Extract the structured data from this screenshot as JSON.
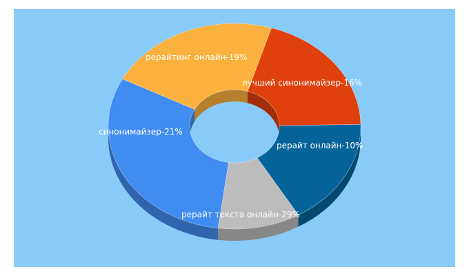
{
  "chart_data": {
    "type": "pie",
    "style": "3d-donut",
    "background": "#88cbf9",
    "slices": [
      {
        "label": "рерайтинг онлайн-19%",
        "value": 19,
        "color": "#e0400b"
      },
      {
        "label": "лучший синонимайзер-16%",
        "value": 16,
        "color": "#04649a"
      },
      {
        "label": "рерайт онлайн-10%",
        "value": 10,
        "color": "#bcbcbc"
      },
      {
        "label": "рерайт текста онлайн-29%",
        "value": 29,
        "color": "#418cf0"
      },
      {
        "label": "синонимайзер-21%",
        "value": 21,
        "color": "#fbb13d"
      }
    ]
  }
}
